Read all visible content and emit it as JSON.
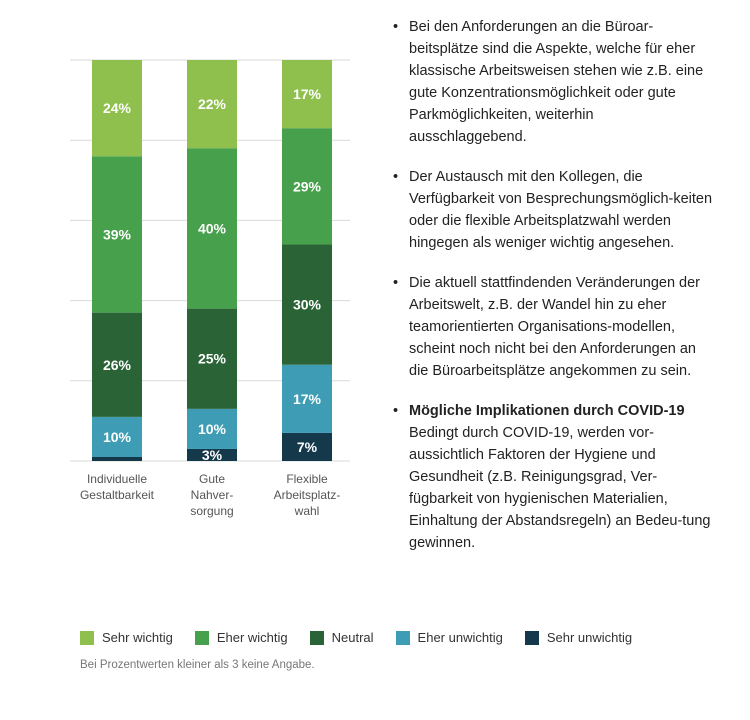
{
  "chart_data": {
    "type": "bar",
    "stacked": true,
    "orientation": "vertical",
    "categories": [
      "Individuelle Gestaltbarkeit",
      "Gute Nahver-sorgung",
      "Flexible Arbeitsplatz-wahl"
    ],
    "category_label_lines": [
      [
        "Individuelle",
        "Gestaltbarkeit"
      ],
      [
        "Gute",
        "Nahver-",
        "sorgung"
      ],
      [
        "Flexible",
        "Arbeitsplatz-",
        "wahl"
      ]
    ],
    "series": [
      {
        "name": "Sehr unwichtig",
        "color": "#14394a",
        "values": [
          1,
          3,
          7
        ],
        "labels": [
          "",
          "3%",
          "7%"
        ]
      },
      {
        "name": "Eher unwichtig",
        "color": "#3e9cb5",
        "values": [
          10,
          10,
          17
        ],
        "labels": [
          "10%",
          "10%",
          "17%"
        ]
      },
      {
        "name": "Neutral",
        "color": "#2a6436",
        "values": [
          26,
          25,
          30
        ],
        "labels": [
          "26%",
          "25%",
          "30%"
        ]
      },
      {
        "name": "Eher wichtig",
        "color": "#47a04b",
        "values": [
          39,
          40,
          29
        ],
        "labels": [
          "39%",
          "40%",
          "29%"
        ]
      },
      {
        "name": "Sehr wichtig",
        "color": "#8fc04d",
        "values": [
          24,
          22,
          17
        ],
        "labels": [
          "24%",
          "22%",
          "17%"
        ]
      }
    ],
    "ylim": [
      0,
      100
    ],
    "grid": true,
    "legend_position": "bottom",
    "legend_order": [
      "Sehr wichtig",
      "Eher wichtig",
      "Neutral",
      "Eher unwichtig",
      "Sehr unwichtig"
    ]
  },
  "notes": [
    {
      "heading": "",
      "text": "Bei den Anforderungen an die Büroar-beitsplätze sind die Aspekte, welche für eher klassische Arbeitsweisen stehen wie z.B. eine gute Konzentrationsmöglichkeit oder gute Parkmöglichkeiten, weiterhin ausschlaggebend."
    },
    {
      "heading": "",
      "text": "Der Austausch mit den Kollegen, die Verfügbarkeit von Besprechungsmöglich-keiten oder die flexible Arbeitsplatzwahl werden hingegen als weniger wichtig angesehen."
    },
    {
      "heading": "",
      "text": "Die aktuell stattfindenden Veränderungen der Arbeitswelt, z.B. der Wandel hin zu eher teamorientierten Organisations-modellen, scheint noch nicht bei den Anforderungen an die Büroarbeitsplätze angekommen zu sein."
    },
    {
      "heading": "Mögliche Implikationen durch COVID-19",
      "text": "Bedingt durch COVID-19, werden vor-aussichtlich Faktoren der Hygiene und Gesundheit (z.B. Reinigungsgrad, Ver-fügbarkeit von hygienischen Materialien, Einhaltung der Abstandsregeln) an Bedeu-tung gewinnen."
    }
  ],
  "footnote": "Bei Prozentwerten kleiner als 3 keine Angabe."
}
